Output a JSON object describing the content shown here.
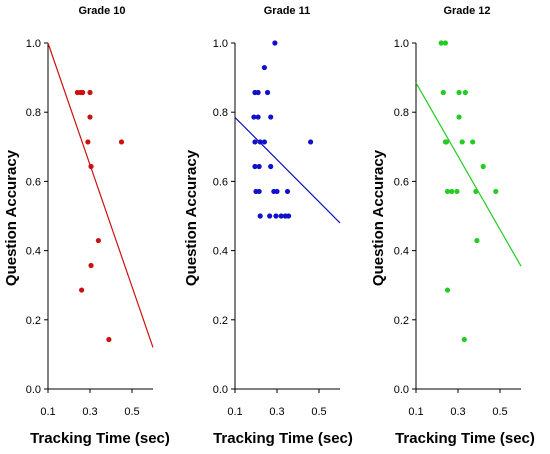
{
  "chart_data": [
    {
      "type": "scatter",
      "title": "Grade 10",
      "xlabel": "Tracking Time (sec)",
      "ylabel": "Question Accuracy",
      "xlim": [
        0.1,
        0.6
      ],
      "ylim": [
        0.0,
        1.0
      ],
      "xticks": [
        "0.1",
        "0.3",
        "0.5"
      ],
      "yticks": [
        "0.0",
        "0.2",
        "0.4",
        "0.6",
        "0.8",
        "1.0"
      ],
      "color": "#cc1111",
      "points": [
        {
          "x": 0.24,
          "y": 0.857
        },
        {
          "x": 0.255,
          "y": 0.857
        },
        {
          "x": 0.265,
          "y": 0.857
        },
        {
          "x": 0.3,
          "y": 0.857
        },
        {
          "x": 0.3,
          "y": 0.786
        },
        {
          "x": 0.29,
          "y": 0.714
        },
        {
          "x": 0.45,
          "y": 0.714
        },
        {
          "x": 0.305,
          "y": 0.643
        },
        {
          "x": 0.34,
          "y": 0.429
        },
        {
          "x": 0.305,
          "y": 0.357
        },
        {
          "x": 0.26,
          "y": 0.286
        },
        {
          "x": 0.39,
          "y": 0.143
        }
      ],
      "trend": {
        "x": [
          0.1,
          0.6
        ],
        "y": [
          1.0,
          0.12
        ]
      }
    },
    {
      "type": "scatter",
      "title": "Grade 11",
      "xlabel": "",
      "ylabel": "Question Accuracy",
      "xlim": [
        0.1,
        0.6
      ],
      "ylim": [
        0.0,
        1.0
      ],
      "xticks": [
        "0.1",
        "0.3",
        "0.5"
      ],
      "yticks": [
        "0.0",
        "0.2",
        "0.4",
        "0.6",
        "0.8",
        "1.0"
      ],
      "color": "#1111cc",
      "points": [
        {
          "x": 0.29,
          "y": 1.0
        },
        {
          "x": 0.24,
          "y": 0.929
        },
        {
          "x": 0.195,
          "y": 0.857
        },
        {
          "x": 0.21,
          "y": 0.857
        },
        {
          "x": 0.255,
          "y": 0.857
        },
        {
          "x": 0.19,
          "y": 0.786
        },
        {
          "x": 0.21,
          "y": 0.786
        },
        {
          "x": 0.27,
          "y": 0.786
        },
        {
          "x": 0.195,
          "y": 0.714
        },
        {
          "x": 0.22,
          "y": 0.714
        },
        {
          "x": 0.24,
          "y": 0.714
        },
        {
          "x": 0.46,
          "y": 0.714
        },
        {
          "x": 0.195,
          "y": 0.643
        },
        {
          "x": 0.215,
          "y": 0.643
        },
        {
          "x": 0.27,
          "y": 0.643
        },
        {
          "x": 0.2,
          "y": 0.571
        },
        {
          "x": 0.215,
          "y": 0.571
        },
        {
          "x": 0.285,
          "y": 0.571
        },
        {
          "x": 0.3,
          "y": 0.571
        },
        {
          "x": 0.35,
          "y": 0.571
        },
        {
          "x": 0.22,
          "y": 0.5
        },
        {
          "x": 0.265,
          "y": 0.5
        },
        {
          "x": 0.295,
          "y": 0.5
        },
        {
          "x": 0.32,
          "y": 0.5
        },
        {
          "x": 0.34,
          "y": 0.5
        },
        {
          "x": 0.355,
          "y": 0.5
        }
      ],
      "trend": {
        "x": [
          0.1,
          0.6
        ],
        "y": [
          0.785,
          0.48
        ]
      }
    },
    {
      "type": "scatter",
      "title": "Grade 12",
      "xlabel": "",
      "ylabel": "Question Accuracy",
      "xlim": [
        0.1,
        0.6
      ],
      "ylim": [
        0.0,
        1.0
      ],
      "xticks": [
        "0.1",
        "0.3",
        "0.5"
      ],
      "yticks": [
        "0.0",
        "0.2",
        "0.4",
        "0.6",
        "0.8",
        "1.0"
      ],
      "color": "#22cc22",
      "points": [
        {
          "x": 0.22,
          "y": 1.0
        },
        {
          "x": 0.24,
          "y": 1.0
        },
        {
          "x": 0.23,
          "y": 0.857
        },
        {
          "x": 0.305,
          "y": 0.857
        },
        {
          "x": 0.335,
          "y": 0.857
        },
        {
          "x": 0.305,
          "y": 0.786
        },
        {
          "x": 0.24,
          "y": 0.714
        },
        {
          "x": 0.245,
          "y": 0.714
        },
        {
          "x": 0.32,
          "y": 0.714
        },
        {
          "x": 0.37,
          "y": 0.714
        },
        {
          "x": 0.42,
          "y": 0.643
        },
        {
          "x": 0.25,
          "y": 0.571
        },
        {
          "x": 0.27,
          "y": 0.571
        },
        {
          "x": 0.295,
          "y": 0.571
        },
        {
          "x": 0.385,
          "y": 0.571
        },
        {
          "x": 0.48,
          "y": 0.571
        },
        {
          "x": 0.39,
          "y": 0.429
        },
        {
          "x": 0.25,
          "y": 0.286
        },
        {
          "x": 0.33,
          "y": 0.143
        }
      ],
      "trend": {
        "x": [
          0.1,
          0.6
        ],
        "y": [
          0.885,
          0.355
        ]
      }
    }
  ]
}
